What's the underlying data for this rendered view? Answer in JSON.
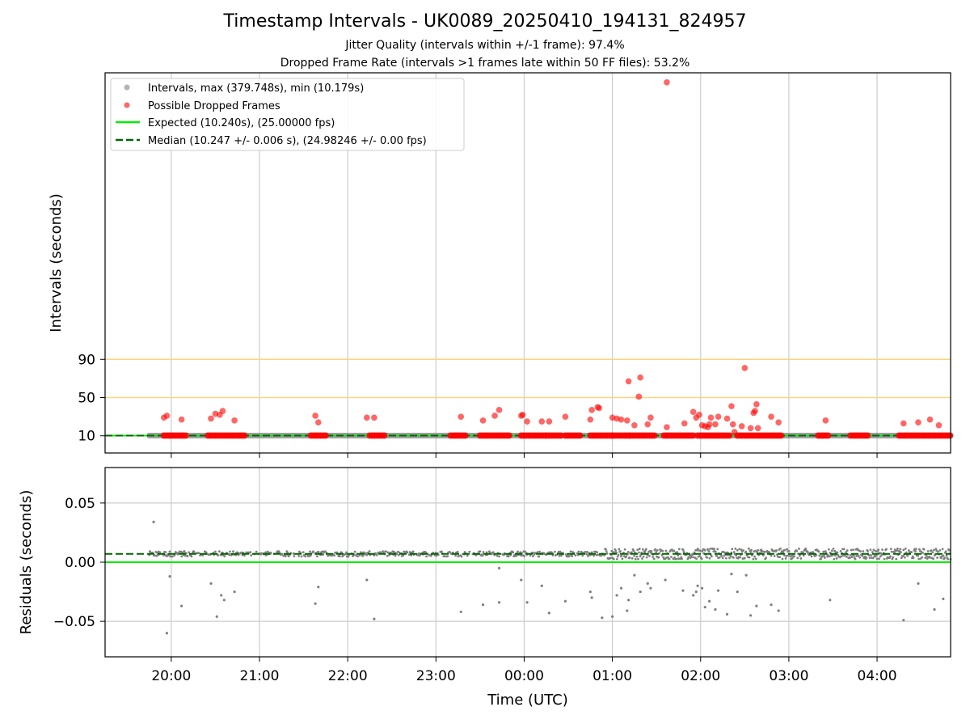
{
  "title": "Timestamp Intervals - UK0089_20250410_194131_824957",
  "subtitle1": "Jitter Quality (intervals within +/-1 frame): 97.4%",
  "subtitle2": "Dropped Frame Rate (intervals >1 frames late within 50 FF files): 53.2%",
  "colors": {
    "intervals": "#808080",
    "dropped": "#ff0000",
    "expected": "#00ee00",
    "median": "#006400",
    "threshold": "#ffd27f",
    "grid": "#cccccc"
  },
  "chart_data": [
    {
      "type": "scatter",
      "panel": "intervals",
      "ylabel": "Intervals (seconds)",
      "xlabel": "",
      "x_ticks": [
        "20:00",
        "21:00",
        "22:00",
        "23:00",
        "00:00",
        "01:00",
        "02:00",
        "03:00",
        "04:00"
      ],
      "xlim": [
        "19:15",
        "04:50"
      ],
      "y_ticks": [
        10,
        50,
        90
      ],
      "ylim": [
        -8,
        390
      ],
      "grid": "x",
      "legend_position": "top-left",
      "legend": [
        "Intervals, max (379.748s), min (10.179s)",
        "Possible Dropped Frames",
        "Expected (10.240s), (25.00000 fps)",
        "Median (10.247 +/- 0.006 s), (24.98246 +/- 0.00 fps)"
      ],
      "reference_lines": [
        {
          "name": "Expected (10.240s), (25.00000 fps)",
          "y": 10.24,
          "style": "solid"
        },
        {
          "name": "Median (10.247 +/- 0.006 s), (24.98246 +/- 0.00 fps)",
          "y": 10.247,
          "style": "dashed"
        },
        {
          "y": 50,
          "style": "threshold"
        },
        {
          "y": 90,
          "style": "threshold"
        }
      ],
      "series": [
        {
          "name": "Intervals, max (379.748s), min (10.179s)",
          "x_range": [
            "19:45",
            "04:50"
          ],
          "y": 10.25
        },
        {
          "name": "Possible Dropped Frames",
          "baseline_runs": [
            [
              "19:55",
              "20:10"
            ],
            [
              "20:25",
              "20:50"
            ],
            [
              "21:35",
              "21:45"
            ],
            [
              "22:15",
              "22:25"
            ],
            [
              "23:10",
              "23:20"
            ],
            [
              "23:30",
              "23:50"
            ],
            [
              "23:58",
              "00:15"
            ],
            [
              "00:15",
              "00:25"
            ],
            [
              "00:28",
              "00:38"
            ],
            [
              "00:45",
              "01:00"
            ],
            [
              "01:00",
              "01:12"
            ],
            [
              "01:12",
              "01:30"
            ],
            [
              "01:35",
              "01:55"
            ],
            [
              "01:58",
              "02:20"
            ],
            [
              "02:25",
              "02:55"
            ],
            [
              "03:20",
              "03:28"
            ],
            [
              "03:42",
              "03:55"
            ],
            [
              "04:15",
              "04:50"
            ]
          ],
          "points": [
            {
              "x": "19:55",
              "y": 29
            },
            {
              "x": "19:57",
              "y": 31
            },
            {
              "x": "20:07",
              "y": 27
            },
            {
              "x": "20:27",
              "y": 28
            },
            {
              "x": "20:30",
              "y": 33
            },
            {
              "x": "20:33",
              "y": 32
            },
            {
              "x": "20:35",
              "y": 36
            },
            {
              "x": "20:43",
              "y": 26
            },
            {
              "x": "21:38",
              "y": 31
            },
            {
              "x": "21:40",
              "y": 24
            },
            {
              "x": "22:13",
              "y": 29
            },
            {
              "x": "22:18",
              "y": 29
            },
            {
              "x": "23:17",
              "y": 30
            },
            {
              "x": "23:32",
              "y": 26
            },
            {
              "x": "23:40",
              "y": 31
            },
            {
              "x": "23:43",
              "y": 37
            },
            {
              "x": "23:58",
              "y": 31
            },
            {
              "x": "23:59",
              "y": 32
            },
            {
              "x": "00:02",
              "y": 25
            },
            {
              "x": "00:12",
              "y": 25
            },
            {
              "x": "00:17",
              "y": 25
            },
            {
              "x": "00:28",
              "y": 30
            },
            {
              "x": "00:45",
              "y": 27
            },
            {
              "x": "00:46",
              "y": 37
            },
            {
              "x": "00:50",
              "y": 40
            },
            {
              "x": "00:51",
              "y": 39
            },
            {
              "x": "01:00",
              "y": 29
            },
            {
              "x": "01:03",
              "y": 28
            },
            {
              "x": "01:06",
              "y": 27
            },
            {
              "x": "01:10",
              "y": 26
            },
            {
              "x": "01:11",
              "y": 67
            },
            {
              "x": "01:15",
              "y": 21
            },
            {
              "x": "01:18",
              "y": 51
            },
            {
              "x": "01:19",
              "y": 71
            },
            {
              "x": "01:24",
              "y": 22
            },
            {
              "x": "01:26",
              "y": 29
            },
            {
              "x": "01:37",
              "y": 19
            },
            {
              "x": "01:37",
              "y": 380
            },
            {
              "x": "01:49",
              "y": 23
            },
            {
              "x": "01:55",
              "y": 35
            },
            {
              "x": "01:57",
              "y": 29
            },
            {
              "x": "01:59",
              "y": 32
            },
            {
              "x": "02:01",
              "y": 21
            },
            {
              "x": "02:03",
              "y": 20
            },
            {
              "x": "02:05",
              "y": 19
            },
            {
              "x": "02:06",
              "y": 22
            },
            {
              "x": "02:07",
              "y": 29
            },
            {
              "x": "02:10",
              "y": 22
            },
            {
              "x": "02:12",
              "y": 30
            },
            {
              "x": "02:18",
              "y": 28
            },
            {
              "x": "02:21",
              "y": 41
            },
            {
              "x": "02:22",
              "y": 22
            },
            {
              "x": "02:23",
              "y": 14
            },
            {
              "x": "02:28",
              "y": 20
            },
            {
              "x": "02:30",
              "y": 81
            },
            {
              "x": "02:34",
              "y": 18
            },
            {
              "x": "02:36",
              "y": 34
            },
            {
              "x": "02:37",
              "y": 36
            },
            {
              "x": "02:38",
              "y": 43
            },
            {
              "x": "02:39",
              "y": 18
            },
            {
              "x": "02:48",
              "y": 30
            },
            {
              "x": "02:53",
              "y": 24
            },
            {
              "x": "03:25",
              "y": 26
            },
            {
              "x": "04:18",
              "y": 23
            },
            {
              "x": "04:28",
              "y": 24
            },
            {
              "x": "04:36",
              "y": 27
            },
            {
              "x": "04:42",
              "y": 21
            }
          ]
        }
      ]
    },
    {
      "type": "scatter",
      "panel": "residuals",
      "ylabel": "Residuals (seconds)",
      "xlabel": "Time (UTC)",
      "x_ticks": [
        "20:00",
        "21:00",
        "22:00",
        "23:00",
        "00:00",
        "01:00",
        "02:00",
        "03:00",
        "04:00"
      ],
      "xlim": [
        "19:15",
        "04:50"
      ],
      "y_ticks": [
        -0.05,
        0.0,
        0.05
      ],
      "y_tick_labels": [
        "−0.05",
        "0.00",
        "0.05"
      ],
      "ylim": [
        -0.08,
        0.08
      ],
      "grid": "both",
      "reference_lines": [
        {
          "y": 0.0,
          "style": "solid"
        },
        {
          "y": 0.007,
          "style": "dashed"
        }
      ],
      "series": [
        {
          "name": "Residuals",
          "baseline": 0.007,
          "outliers": [
            {
              "x": "19:48",
              "y": 0.034
            },
            {
              "x": "19:57",
              "y": -0.06
            },
            {
              "x": "19:59",
              "y": -0.012
            },
            {
              "x": "20:07",
              "y": -0.037
            },
            {
              "x": "20:27",
              "y": -0.018
            },
            {
              "x": "20:31",
              "y": -0.046
            },
            {
              "x": "20:34",
              "y": -0.028
            },
            {
              "x": "20:36",
              "y": -0.032
            },
            {
              "x": "20:43",
              "y": -0.025
            },
            {
              "x": "21:38",
              "y": -0.035
            },
            {
              "x": "21:40",
              "y": -0.021
            },
            {
              "x": "22:13",
              "y": -0.015
            },
            {
              "x": "22:18",
              "y": -0.048
            },
            {
              "x": "23:17",
              "y": -0.042
            },
            {
              "x": "23:32",
              "y": -0.036
            },
            {
              "x": "23:43",
              "y": -0.005
            },
            {
              "x": "23:43",
              "y": -0.034
            },
            {
              "x": "23:58",
              "y": -0.015
            },
            {
              "x": "00:02",
              "y": -0.034
            },
            {
              "x": "00:12",
              "y": -0.02
            },
            {
              "x": "00:17",
              "y": -0.043
            },
            {
              "x": "00:28",
              "y": -0.033
            },
            {
              "x": "00:45",
              "y": -0.025
            },
            {
              "x": "00:46",
              "y": -0.03
            },
            {
              "x": "00:53",
              "y": -0.047
            },
            {
              "x": "01:00",
              "y": -0.046
            },
            {
              "x": "01:03",
              "y": -0.028
            },
            {
              "x": "01:06",
              "y": -0.022
            },
            {
              "x": "01:10",
              "y": -0.041
            },
            {
              "x": "01:11",
              "y": -0.032
            },
            {
              "x": "01:15",
              "y": -0.011
            },
            {
              "x": "01:19",
              "y": -0.025
            },
            {
              "x": "01:24",
              "y": -0.018
            },
            {
              "x": "01:26",
              "y": -0.022
            },
            {
              "x": "01:36",
              "y": -0.015
            },
            {
              "x": "01:48",
              "y": -0.024
            },
            {
              "x": "01:55",
              "y": -0.028
            },
            {
              "x": "01:57",
              "y": -0.025
            },
            {
              "x": "01:58",
              "y": -0.02
            },
            {
              "x": "02:01",
              "y": -0.022
            },
            {
              "x": "02:03",
              "y": -0.038
            },
            {
              "x": "02:06",
              "y": -0.033
            },
            {
              "x": "02:10",
              "y": -0.04
            },
            {
              "x": "02:12",
              "y": -0.024
            },
            {
              "x": "02:18",
              "y": -0.044
            },
            {
              "x": "02:21",
              "y": -0.01
            },
            {
              "x": "02:25",
              "y": -0.025
            },
            {
              "x": "02:31",
              "y": -0.011
            },
            {
              "x": "02:34",
              "y": -0.045
            },
            {
              "x": "02:38",
              "y": -0.037
            },
            {
              "x": "02:48",
              "y": -0.036
            },
            {
              "x": "02:53",
              "y": -0.041
            },
            {
              "x": "03:28",
              "y": -0.032
            },
            {
              "x": "04:18",
              "y": -0.049
            },
            {
              "x": "04:28",
              "y": -0.018
            },
            {
              "x": "04:39",
              "y": -0.04
            },
            {
              "x": "04:45",
              "y": -0.031
            }
          ]
        }
      ]
    }
  ]
}
